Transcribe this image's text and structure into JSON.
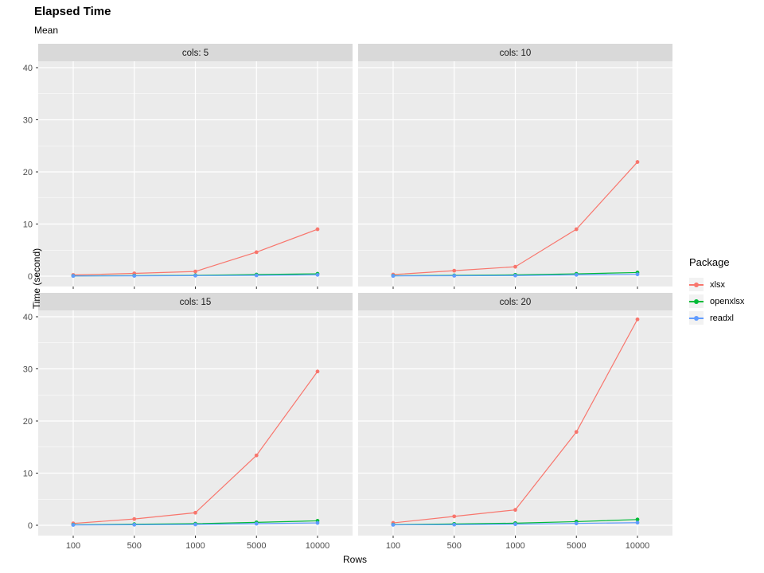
{
  "title": "Elapsed Time",
  "subtitle": "Mean",
  "x_axis": {
    "label": "Rows",
    "ticks": [
      "100",
      "500",
      "1000",
      "5000",
      "10000"
    ]
  },
  "y_axis": {
    "label": "Time (second)",
    "ticks": [
      "0",
      "10",
      "20",
      "30",
      "40"
    ]
  },
  "legend": {
    "title": "Package",
    "items": [
      {
        "label": "xlsx",
        "color": "#F8766D"
      },
      {
        "label": "openxlsx",
        "color": "#00BA38"
      },
      {
        "label": "readxl",
        "color": "#619CFF"
      }
    ]
  },
  "theme": {
    "panel_bg": "#EBEBEB",
    "strip_bg": "#D9D9D9",
    "grid_color": "#FFFFFF",
    "tick_label_color": "#4D4D4D",
    "strip_text_color": "#1A1A1A",
    "tick_mark_color": "#333333"
  },
  "chart_data": {
    "type": "line",
    "title": "Elapsed Time",
    "subtitle": "Mean",
    "xlabel": "Rows",
    "ylabel": "Time (second)",
    "x_categories": [
      "100",
      "500",
      "1000",
      "5000",
      "10000"
    ],
    "ylim": [
      0,
      40
    ],
    "y_major_ticks": [
      0,
      10,
      20,
      30,
      40
    ],
    "y_minor_ticks": [
      5,
      15,
      25,
      35
    ],
    "grid": true,
    "legend_title": "Package",
    "legend_position": "right",
    "facet_layout": [
      2,
      2
    ],
    "series_colors": {
      "xlsx": "#F8766D",
      "openxlsx": "#00BA38",
      "readxl": "#619CFF"
    },
    "facets": [
      {
        "label": "cols: 5",
        "series": [
          {
            "name": "xlsx",
            "values": [
              0.23,
              0.53,
              0.9,
              4.6,
              9.0
            ]
          },
          {
            "name": "openxlsx",
            "values": [
              0.06,
              0.1,
              0.16,
              0.3,
              0.45
            ]
          },
          {
            "name": "readxl",
            "values": [
              0.04,
              0.06,
              0.1,
              0.15,
              0.25
            ]
          }
        ]
      },
      {
        "label": "cols: 10",
        "series": [
          {
            "name": "xlsx",
            "values": [
              0.3,
              1.05,
              1.8,
              9.0,
              21.9
            ]
          },
          {
            "name": "openxlsx",
            "values": [
              0.08,
              0.15,
              0.25,
              0.45,
              0.7
            ]
          },
          {
            "name": "readxl",
            "values": [
              0.05,
              0.08,
              0.12,
              0.25,
              0.35
            ]
          }
        ]
      },
      {
        "label": "cols: 15",
        "series": [
          {
            "name": "xlsx",
            "values": [
              0.35,
              1.2,
              2.4,
              13.4,
              29.5
            ]
          },
          {
            "name": "openxlsx",
            "values": [
              0.1,
              0.2,
              0.3,
              0.55,
              0.85
            ]
          },
          {
            "name": "readxl",
            "values": [
              0.06,
              0.1,
              0.15,
              0.3,
              0.45
            ]
          }
        ]
      },
      {
        "label": "cols: 20",
        "series": [
          {
            "name": "xlsx",
            "values": [
              0.45,
              1.7,
              2.95,
              17.9,
              39.5
            ]
          },
          {
            "name": "openxlsx",
            "values": [
              0.12,
              0.25,
              0.4,
              0.7,
              1.1
            ]
          },
          {
            "name": "readxl",
            "values": [
              0.08,
              0.12,
              0.2,
              0.35,
              0.5
            ]
          }
        ]
      }
    ]
  }
}
